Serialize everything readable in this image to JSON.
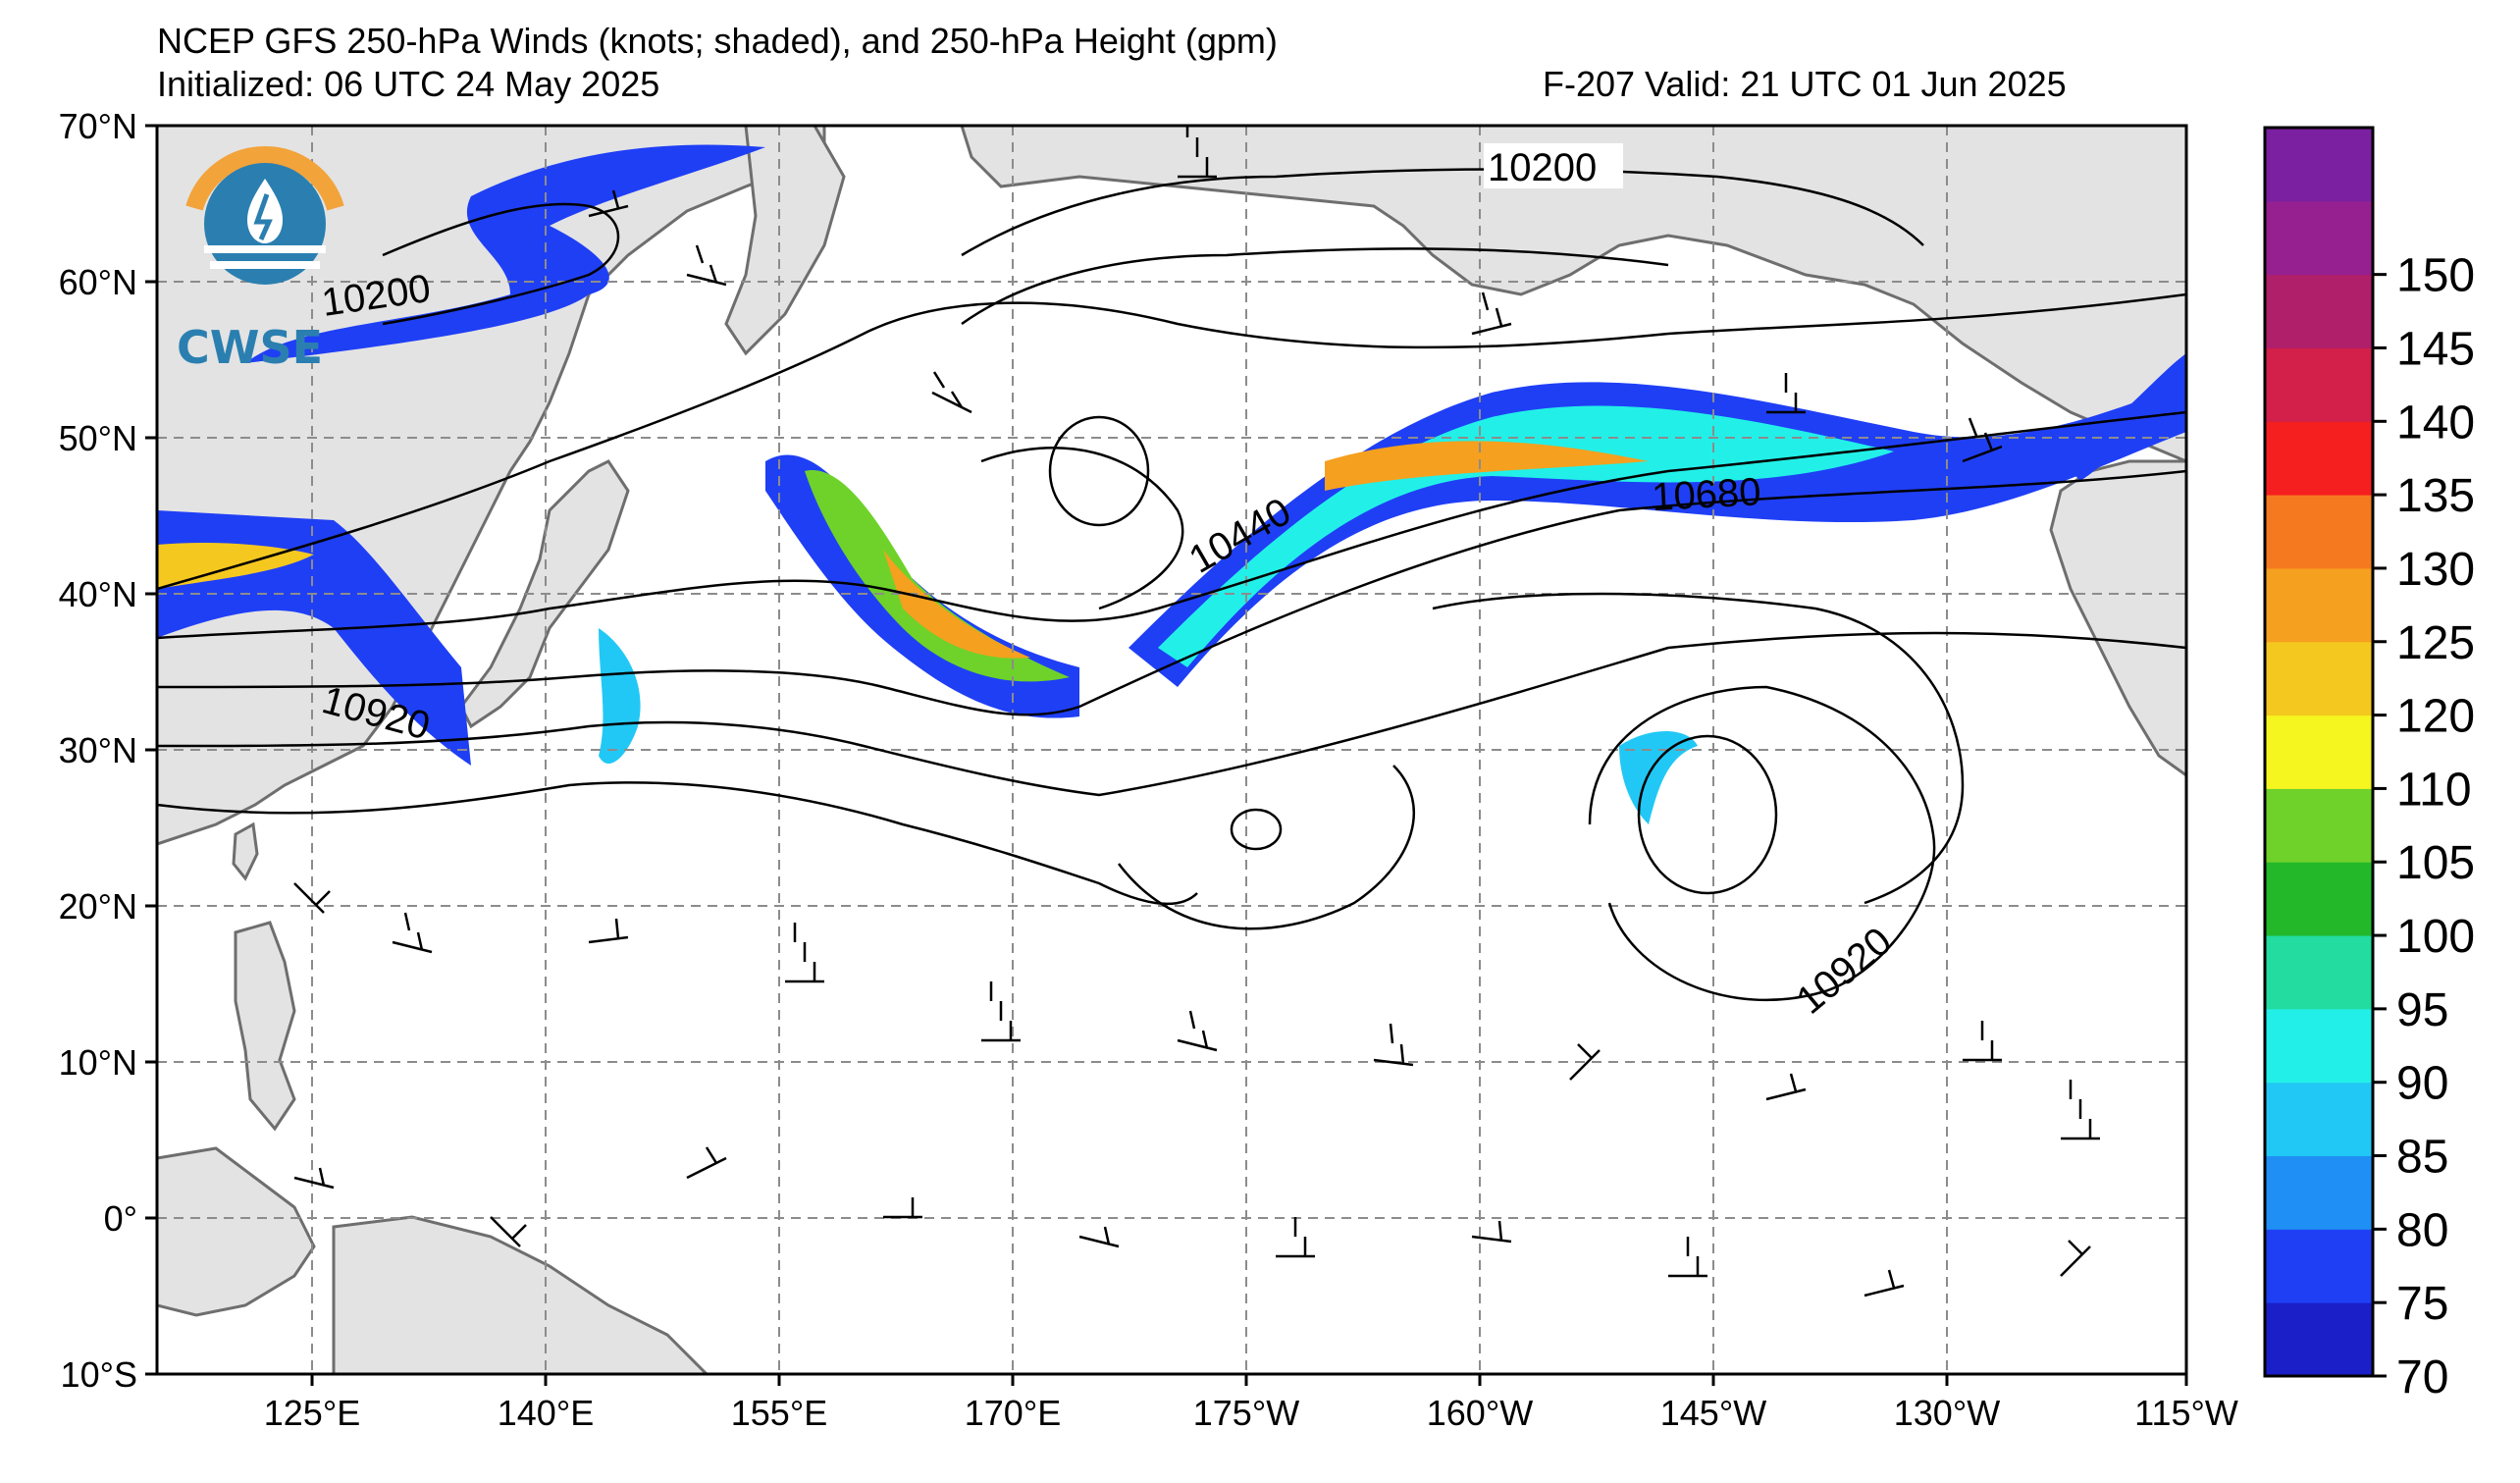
{
  "title_line1": "NCEP GFS 250-hPa Winds (knots; shaded), and 250-hPa Height (gpm)",
  "title_line2_left": "Initialized: 06 UTC 24 May 2025",
  "title_line2_right": "F-207  Valid: 21 UTC 01 Jun 2025",
  "logo": {
    "text": "CWSE",
    "icon": "storm-water-logo-icon"
  },
  "latitude_labels": [
    "70°N",
    "60°N",
    "50°N",
    "40°N",
    "30°N",
    "20°N",
    "10°N",
    "0°",
    "10°S"
  ],
  "longitude_labels": [
    "125°E",
    "140°E",
    "155°E",
    "170°E",
    "175°W",
    "160°W",
    "145°W",
    "130°W",
    "115°W"
  ],
  "colorbar": {
    "labels": [
      "70",
      "75",
      "80",
      "85",
      "90",
      "95",
      "100",
      "105",
      "110",
      "120",
      "125",
      "130",
      "135",
      "140",
      "145",
      "150"
    ],
    "colors": [
      "#1a1fc8",
      "#1f3ff5",
      "#1f8ff5",
      "#22c8f5",
      "#22f0e8",
      "#22dca0",
      "#22b82a",
      "#6ed22a",
      "#f5f51f",
      "#f5c81f",
      "#f5a01f",
      "#f57a1f",
      "#f51f1f",
      "#d2204a",
      "#b01f6a",
      "#962090",
      "#7a20a0"
    ]
  },
  "contour_labels": {
    "c10200_ne": "10200",
    "c10200_nw": "10200",
    "c10440": "10440",
    "c10680": "10680",
    "c10920_w": "10920",
    "c10920_e": "10920"
  },
  "colors": {
    "land": "#e3e3e3",
    "coast": "#6e6e6e",
    "grid": "#8c8c8c",
    "ocean": "#ffffff"
  }
}
